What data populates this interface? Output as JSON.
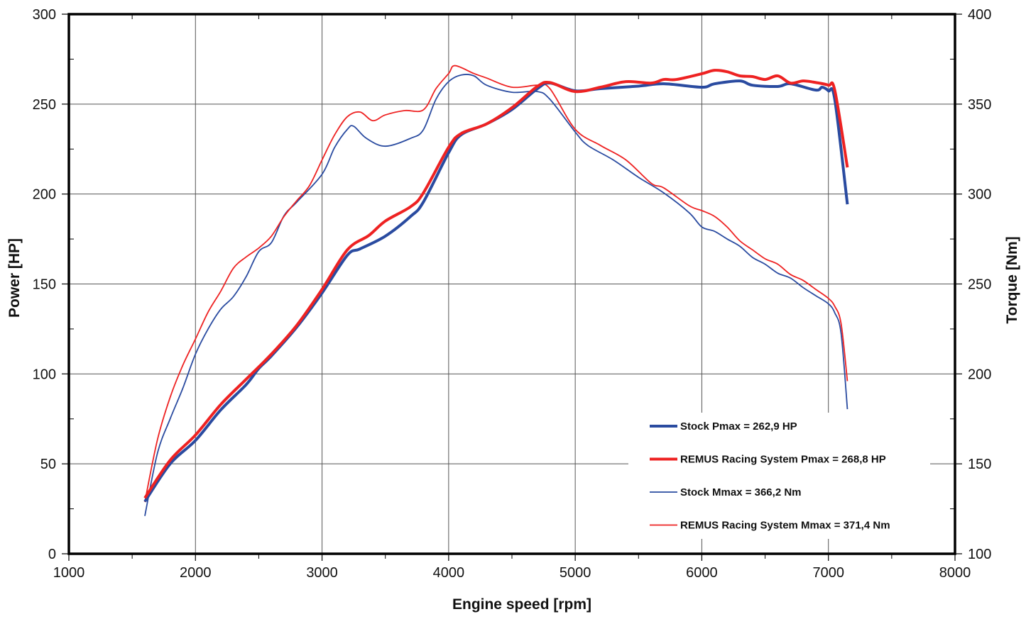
{
  "chart_data": {
    "type": "line",
    "title": "",
    "xlabel": "Engine speed [rpm]",
    "ylabel": "Power [HP]",
    "y2label": "Torque [Nm]",
    "xlim": [
      1000,
      8000
    ],
    "ylim": [
      0,
      300
    ],
    "y2lim": [
      100,
      400
    ],
    "xticks": [
      "1000",
      "2000",
      "3000",
      "4000",
      "5000",
      "6000",
      "7000",
      "8000"
    ],
    "yticks": [
      "0",
      "50",
      "100",
      "150",
      "200",
      "250",
      "300"
    ],
    "y2ticks": [
      "100",
      "150",
      "200",
      "250",
      "300",
      "350",
      "400"
    ],
    "grid": true,
    "legend_position": "bottom-right",
    "series": [
      {
        "name": "Stock Pmax = 262,9 HP",
        "axis": "left",
        "color": "#2a4ba0",
        "weight": "thick",
        "x": [
          1600,
          1800,
          2000,
          2200,
          2400,
          2500,
          2600,
          2800,
          3000,
          3200,
          3300,
          3500,
          3700,
          3800,
          4000,
          4100,
          4300,
          4500,
          4700,
          4800,
          5000,
          5200,
          5500,
          5700,
          6000,
          6100,
          6300,
          6400,
          6600,
          6700,
          6900,
          6950,
          7000,
          7050,
          7150
        ],
        "y": [
          29,
          50,
          63,
          80,
          94,
          103,
          110,
          126,
          145,
          166,
          169.5,
          176.6,
          187.6,
          195.5,
          223,
          233,
          239,
          247,
          258.5,
          261.7,
          257.4,
          258.6,
          260,
          261.3,
          259.4,
          261.3,
          262.9,
          260.5,
          259.8,
          261.3,
          257.8,
          259.4,
          257.4,
          252.7,
          194.3
        ]
      },
      {
        "name": "REMUS Racing System Pmax = 268,8 HP",
        "axis": "left",
        "color": "#ee2222",
        "weight": "thick",
        "x": [
          1600,
          1800,
          2000,
          2200,
          2400,
          2600,
          2800,
          3000,
          3200,
          3370,
          3500,
          3700,
          3800,
          4000,
          4100,
          4300,
          4500,
          4700,
          4800,
          5000,
          5200,
          5400,
          5600,
          5700,
          5800,
          6000,
          6100,
          6200,
          6300,
          6400,
          6500,
          6600,
          6700,
          6800,
          6900,
          7000,
          7050,
          7150
        ],
        "y": [
          31,
          52,
          66,
          83,
          97,
          111,
          127,
          147,
          169,
          177,
          185,
          193,
          200.6,
          226,
          233.7,
          239,
          248,
          259.8,
          262,
          257,
          259.4,
          262.5,
          261.7,
          263.7,
          263.7,
          266.9,
          268.8,
          268,
          265.7,
          265.3,
          263.7,
          265.7,
          261.7,
          262.9,
          262,
          260.5,
          257.8,
          214.8
        ]
      },
      {
        "name": "Stock Mmax = 366,2 Nm",
        "axis": "right",
        "color": "#2a4ba0",
        "weight": "thin",
        "x": [
          1600,
          1700,
          1800,
          1900,
          2000,
          2100,
          2200,
          2300,
          2400,
          2500,
          2600,
          2700,
          2800,
          3000,
          3100,
          3200,
          3250,
          3350,
          3500,
          3700,
          3800,
          3900,
          4000,
          4100,
          4200,
          4300,
          4500,
          4700,
          4800,
          5000,
          5100,
          5300,
          5500,
          5700,
          5900,
          6000,
          6100,
          6200,
          6300,
          6400,
          6500,
          6600,
          6700,
          6800,
          6900,
          7000,
          7050,
          7100,
          7150
        ],
        "y": [
          121,
          156,
          175,
          192,
          211,
          225,
          236,
          243,
          254,
          268,
          273,
          288,
          295.5,
          311,
          326,
          336,
          337.7,
          331,
          326.6,
          331,
          335.7,
          352.7,
          362.5,
          366.2,
          365.7,
          360.5,
          356.6,
          357,
          352.7,
          334.5,
          327,
          319,
          309.3,
          300.6,
          289.6,
          281.7,
          279.3,
          275,
          271,
          264.8,
          261,
          256,
          253.3,
          248,
          243.5,
          239,
          234,
          222.6,
          180.4
        ]
      },
      {
        "name": "REMUS Racing System Mmax = 371,4 Nm",
        "axis": "right",
        "color": "#ee2222",
        "weight": "thin",
        "x": [
          1600,
          1700,
          1800,
          1900,
          2000,
          2100,
          2200,
          2300,
          2400,
          2500,
          2600,
          2700,
          2800,
          2900,
          3000,
          3100,
          3200,
          3300,
          3400,
          3500,
          3650,
          3800,
          3900,
          4000,
          4050,
          4200,
          4300,
          4500,
          4700,
          4800,
          5000,
          5200,
          5400,
          5600,
          5700,
          5900,
          6000,
          6100,
          6200,
          6300,
          6400,
          6500,
          6600,
          6700,
          6800,
          6900,
          7000,
          7050,
          7100,
          7150
        ],
        "y": [
          128.8,
          163.5,
          187,
          204.8,
          219.4,
          234.4,
          246,
          258.8,
          265,
          270,
          276.6,
          287.6,
          296.3,
          304.6,
          319,
          333,
          343,
          345.6,
          340.8,
          344,
          346.4,
          346.8,
          358.6,
          367,
          371.4,
          367,
          364.5,
          359.4,
          360.5,
          358.6,
          336,
          327,
          319,
          306,
          303.4,
          293.5,
          290.8,
          287.6,
          281.7,
          274,
          269,
          264,
          261,
          255.3,
          252,
          247,
          242,
          237.6,
          228,
          196
        ]
      }
    ]
  }
}
